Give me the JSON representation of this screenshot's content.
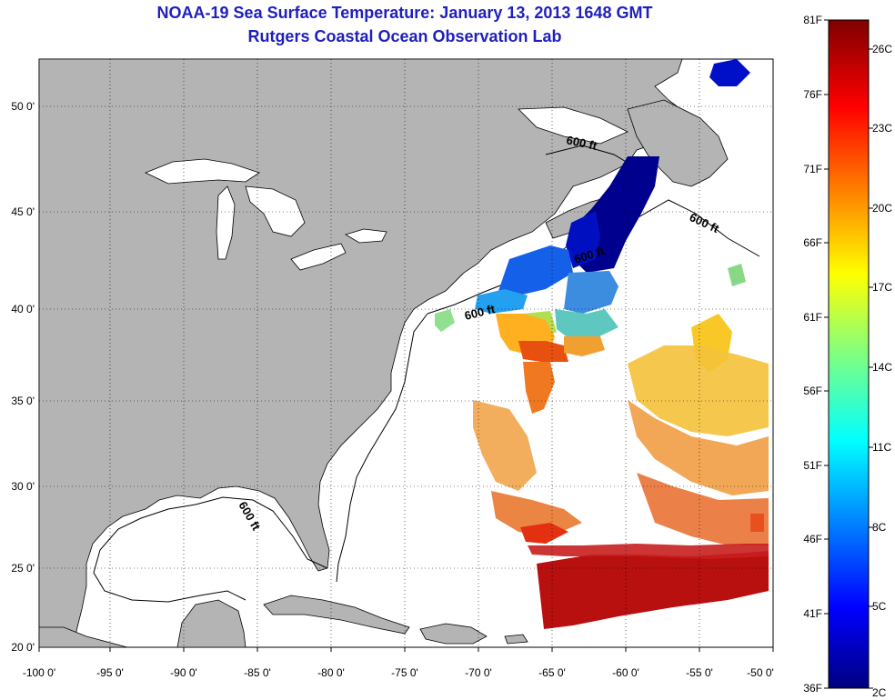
{
  "title": "NOAA-19 Sea Surface Temperature:  January 13, 2013 1648 GMT",
  "subtitle": "Rutgers Coastal Ocean Observation Lab",
  "axes": {
    "x_ticks": [
      "-100 0'",
      "-95 0'",
      "-90 0'",
      "-85 0'",
      "-80 0'",
      "-75 0'",
      "-70 0'",
      "-65 0'",
      "-60 0'",
      "-55 0'",
      "-50 0'"
    ],
    "y_ticks": [
      "50 0'",
      "45 0'",
      "40 0'",
      "35 0'",
      "30 0'",
      "25 0'",
      "20 0'"
    ]
  },
  "contour_labels": [
    "600 ft",
    "600 ft",
    "600 ft",
    "600 ft",
    "600 ft"
  ],
  "colorbar": {
    "f_labels": [
      "81F",
      "76F",
      "71F",
      "66F",
      "61F",
      "56F",
      "51F",
      "46F",
      "41F",
      "36F"
    ],
    "c_labels": [
      "26C",
      "23C",
      "20C",
      "17C",
      "14C",
      "11C",
      "8C",
      "5C",
      "2C"
    ]
  },
  "colors": {
    "land": "#b4b4b4",
    "ocean": "#ffffff",
    "title": "#1f1fbf"
  }
}
